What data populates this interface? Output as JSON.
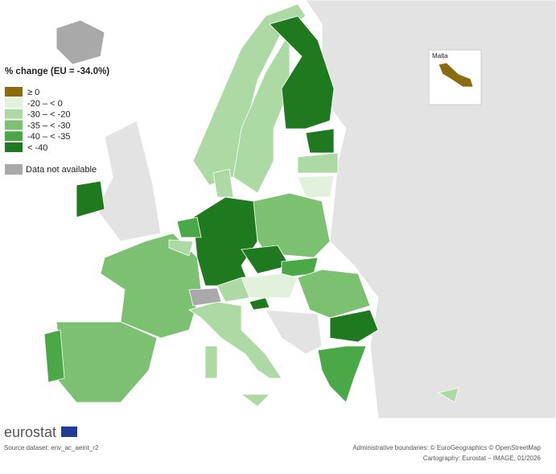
{
  "legend": {
    "title": "% change (EU = -34.0%)",
    "items": [
      {
        "label": "≥ 0",
        "color": "#8a6b0e"
      },
      {
        "label": "-20 – < 0",
        "color": "#e1f1dc"
      },
      {
        "label": "-30 – < -20",
        "color": "#acd9a4"
      },
      {
        "label": "-35 – < -30",
        "color": "#7cc072"
      },
      {
        "label": "-40 – < -35",
        "color": "#4aa846"
      },
      {
        "label": "< -40",
        "color": "#1f7a1f"
      }
    ],
    "no_data": {
      "label": "Data not available",
      "color": "#a9a9a9"
    }
  },
  "inset": {
    "label": "Malta"
  },
  "footer": {
    "logo": "eurostat",
    "source": "Source dataset: env_ac_aeint_r2",
    "boundaries": "Administrative boundaries: © EuroGeographics © OpenStreetMap",
    "cartography": "Cartography: Eurostat – IMAGE, 01/2026"
  }
}
